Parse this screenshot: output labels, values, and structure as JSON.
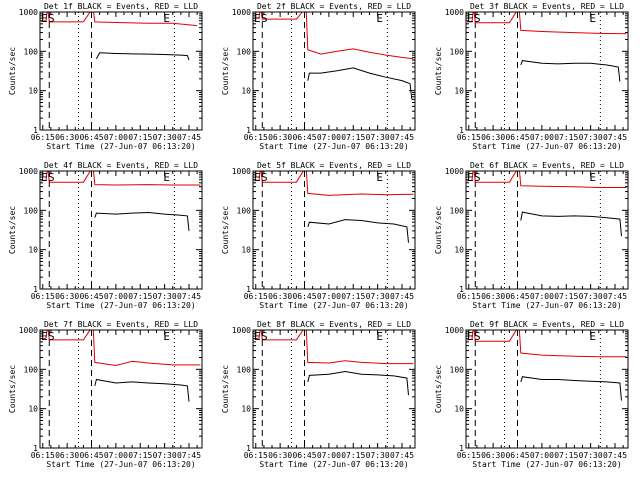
{
  "chart_data": {
    "type": "line",
    "shared": {
      "xlabel": "Start Time (27-Jun-07 06:13:20)",
      "ylabel": "Counts/sec",
      "x_ticks": [
        "06:15",
        "06:30",
        "06:45",
        "07:00",
        "07:15",
        "07:30",
        "07:45"
      ],
      "x_tick_minutes": [
        15,
        30,
        45,
        60,
        75,
        90,
        105
      ],
      "xlim_minutes": [
        13.3,
        113
      ],
      "y_ticks": [
        "1",
        "10",
        "100",
        "1000"
      ],
      "ylim": [
        1,
        1000
      ],
      "y_log": true,
      "flags": [
        "E",
        "S",
        "E"
      ],
      "dashed_minutes": [
        19,
        45
      ],
      "dotted_minutes": [
        37,
        96
      ]
    },
    "panels": [
      {
        "title": "Det 1f BLACK = Events, RED = LLD",
        "series": [
          {
            "name": "Events",
            "color": "#000000",
            "pts": [
              [
                48,
                65
              ],
              [
                50,
                92
              ],
              [
                60,
                88
              ],
              [
                70,
                86
              ],
              [
                80,
                85
              ],
              [
                90,
                83
              ],
              [
                100,
                80
              ],
              [
                104,
                78
              ],
              [
                105,
                60
              ]
            ]
          },
          {
            "name": "LLD",
            "color": "#e00000",
            "pts": [
              [
                14,
                580
              ],
              [
                17,
                600
              ],
              [
                18,
                1300
              ],
              [
                19,
                560
              ],
              [
                30,
                560
              ],
              [
                40,
                560
              ],
              [
                46,
                1300
              ],
              [
                47,
                560
              ],
              [
                60,
                540
              ],
              [
                80,
                520
              ],
              [
                95,
                520
              ],
              [
                110,
                450
              ]
            ]
          }
        ]
      },
      {
        "title": "Det 2f BLACK = Events, RED = LLD",
        "series": [
          {
            "name": "Events",
            "color": "#000000",
            "pts": [
              [
                47,
                18
              ],
              [
                48,
                28
              ],
              [
                55,
                28
              ],
              [
                65,
                32
              ],
              [
                75,
                38
              ],
              [
                85,
                28
              ],
              [
                95,
                22
              ],
              [
                105,
                18
              ],
              [
                110,
                15
              ],
              [
                111,
                6
              ]
            ]
          },
          {
            "name": "LLD",
            "color": "#e00000",
            "pts": [
              [
                14,
                700
              ],
              [
                17,
                700
              ],
              [
                18,
                1300
              ],
              [
                19,
                660
              ],
              [
                30,
                660
              ],
              [
                40,
                660
              ],
              [
                46,
                1300
              ],
              [
                47,
                110
              ],
              [
                55,
                85
              ],
              [
                65,
                100
              ],
              [
                75,
                115
              ],
              [
                85,
                95
              ],
              [
                95,
                80
              ],
              [
                105,
                70
              ],
              [
                112,
                65
              ]
            ]
          }
        ]
      },
      {
        "title": "Det 3f BLACK = Events, RED = LLD",
        "series": [
          {
            "name": "Events",
            "color": "#000000",
            "pts": [
              [
                47,
                45
              ],
              [
                48,
                58
              ],
              [
                60,
                50
              ],
              [
                70,
                48
              ],
              [
                80,
                50
              ],
              [
                90,
                50
              ],
              [
                100,
                45
              ],
              [
                107,
                40
              ],
              [
                108,
                17
              ]
            ]
          },
          {
            "name": "LLD",
            "color": "#e00000",
            "pts": [
              [
                14,
                560
              ],
              [
                17,
                560
              ],
              [
                18,
                1300
              ],
              [
                19,
                530
              ],
              [
                30,
                530
              ],
              [
                40,
                530
              ],
              [
                46,
                1300
              ],
              [
                47,
                340
              ],
              [
                60,
                320
              ],
              [
                80,
                300
              ],
              [
                95,
                285
              ],
              [
                112,
                280
              ]
            ]
          }
        ]
      },
      {
        "title": "Det 4f BLACK = Events, RED = LLD",
        "series": [
          {
            "name": "Events",
            "color": "#000000",
            "pts": [
              [
                47,
                65
              ],
              [
                48,
                85
              ],
              [
                60,
                80
              ],
              [
                70,
                85
              ],
              [
                80,
                88
              ],
              [
                90,
                80
              ],
              [
                100,
                75
              ],
              [
                104,
                72
              ],
              [
                105,
                30
              ]
            ]
          },
          {
            "name": "LLD",
            "color": "#e00000",
            "pts": [
              [
                14,
                560
              ],
              [
                17,
                580
              ],
              [
                18,
                1300
              ],
              [
                19,
                520
              ],
              [
                30,
                520
              ],
              [
                40,
                520
              ],
              [
                46,
                1300
              ],
              [
                47,
                450
              ],
              [
                60,
                440
              ],
              [
                80,
                450
              ],
              [
                95,
                440
              ],
              [
                112,
                440
              ]
            ]
          }
        ]
      },
      {
        "title": "Det 5f BLACK = Events, RED = LLD",
        "series": [
          {
            "name": "Events",
            "color": "#000000",
            "pts": [
              [
                47,
                38
              ],
              [
                48,
                50
              ],
              [
                60,
                45
              ],
              [
                70,
                58
              ],
              [
                80,
                55
              ],
              [
                90,
                48
              ],
              [
                100,
                45
              ],
              [
                108,
                38
              ],
              [
                109,
                15
              ]
            ]
          },
          {
            "name": "LLD",
            "color": "#e00000",
            "pts": [
              [
                14,
                560
              ],
              [
                17,
                580
              ],
              [
                18,
                1300
              ],
              [
                19,
                520
              ],
              [
                30,
                520
              ],
              [
                40,
                520
              ],
              [
                46,
                1300
              ],
              [
                47,
                270
              ],
              [
                60,
                240
              ],
              [
                80,
                260
              ],
              [
                95,
                250
              ],
              [
                112,
                255
              ]
            ]
          }
        ]
      },
      {
        "title": "Det 6f BLACK = Events, RED = LLD",
        "series": [
          {
            "name": "Events",
            "color": "#000000",
            "pts": [
              [
                47,
                55
              ],
              [
                48,
                90
              ],
              [
                60,
                72
              ],
              [
                70,
                70
              ],
              [
                80,
                72
              ],
              [
                90,
                70
              ],
              [
                100,
                65
              ],
              [
                108,
                60
              ],
              [
                109,
                22
              ]
            ]
          },
          {
            "name": "LLD",
            "color": "#e00000",
            "pts": [
              [
                14,
                560
              ],
              [
                17,
                580
              ],
              [
                18,
                1300
              ],
              [
                19,
                520
              ],
              [
                30,
                520
              ],
              [
                40,
                520
              ],
              [
                46,
                1300
              ],
              [
                47,
                420
              ],
              [
                60,
                410
              ],
              [
                80,
                400
              ],
              [
                95,
                380
              ],
              [
                112,
                380
              ]
            ]
          }
        ]
      },
      {
        "title": "Det 7f BLACK = Events, RED = LLD",
        "series": [
          {
            "name": "Events",
            "color": "#000000",
            "pts": [
              [
                47,
                38
              ],
              [
                48,
                55
              ],
              [
                60,
                45
              ],
              [
                70,
                48
              ],
              [
                80,
                45
              ],
              [
                90,
                43
              ],
              [
                100,
                40
              ],
              [
                104,
                38
              ],
              [
                105,
                15
              ]
            ]
          },
          {
            "name": "LLD",
            "color": "#e00000",
            "pts": [
              [
                14,
                600
              ],
              [
                17,
                620
              ],
              [
                18,
                1300
              ],
              [
                19,
                560
              ],
              [
                30,
                560
              ],
              [
                40,
                560
              ],
              [
                46,
                1300
              ],
              [
                47,
                150
              ],
              [
                60,
                125
              ],
              [
                70,
                160
              ],
              [
                80,
                145
              ],
              [
                95,
                130
              ],
              [
                112,
                130
              ]
            ]
          }
        ]
      },
      {
        "title": "Det 8f BLACK = Events, RED = LLD",
        "series": [
          {
            "name": "Events",
            "color": "#000000",
            "pts": [
              [
                47,
                48
              ],
              [
                48,
                70
              ],
              [
                60,
                75
              ],
              [
                70,
                88
              ],
              [
                80,
                75
              ],
              [
                90,
                72
              ],
              [
                100,
                68
              ],
              [
                108,
                60
              ],
              [
                109,
                22
              ]
            ]
          },
          {
            "name": "LLD",
            "color": "#e00000",
            "pts": [
              [
                14,
                600
              ],
              [
                17,
                620
              ],
              [
                18,
                1300
              ],
              [
                19,
                560
              ],
              [
                30,
                560
              ],
              [
                40,
                560
              ],
              [
                46,
                1300
              ],
              [
                47,
                150
              ],
              [
                60,
                145
              ],
              [
                70,
                165
              ],
              [
                80,
                150
              ],
              [
                95,
                140
              ],
              [
                112,
                140
              ]
            ]
          }
        ]
      },
      {
        "title": "Det 9f BLACK = Events, RED = LLD",
        "series": [
          {
            "name": "Events",
            "color": "#000000",
            "pts": [
              [
                47,
                48
              ],
              [
                48,
                65
              ],
              [
                60,
                55
              ],
              [
                70,
                55
              ],
              [
                80,
                52
              ],
              [
                90,
                50
              ],
              [
                100,
                48
              ],
              [
                108,
                45
              ],
              [
                109,
                16
              ]
            ]
          },
          {
            "name": "LLD",
            "color": "#e00000",
            "pts": [
              [
                14,
                560
              ],
              [
                17,
                580
              ],
              [
                18,
                1300
              ],
              [
                19,
                520
              ],
              [
                30,
                520
              ],
              [
                40,
                520
              ],
              [
                46,
                1300
              ],
              [
                47,
                260
              ],
              [
                60,
                230
              ],
              [
                80,
                215
              ],
              [
                95,
                210
              ],
              [
                112,
                210
              ]
            ]
          }
        ]
      }
    ]
  }
}
